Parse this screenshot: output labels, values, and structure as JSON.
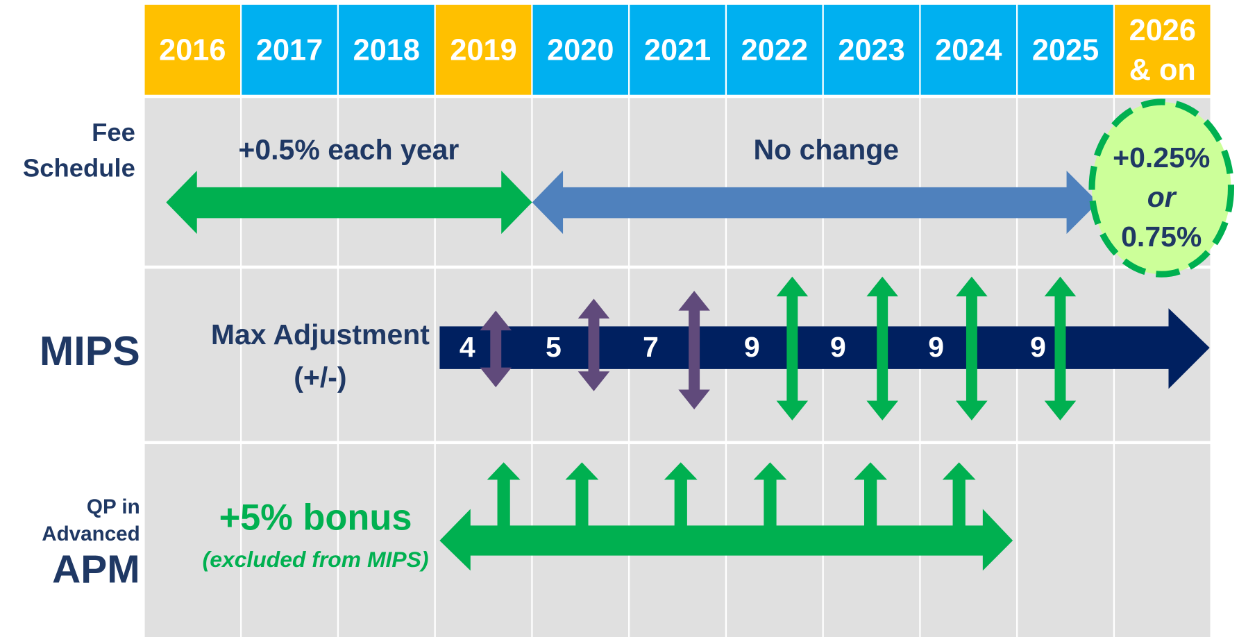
{
  "years": [
    [
      "2016"
    ],
    [
      "2017"
    ],
    [
      "2018"
    ],
    [
      "2019"
    ],
    [
      "2020"
    ],
    [
      "2021"
    ],
    [
      "2022"
    ],
    [
      "2023"
    ],
    [
      "2024"
    ],
    [
      "2025"
    ],
    [
      "2026",
      "& on"
    ]
  ],
  "fee_schedule": {
    "label": [
      "Fee",
      "Schedule"
    ],
    "left_text": "+0.5% each year",
    "mid_text": "No change",
    "circle": [
      "+0.25%",
      "or",
      "0.75%"
    ]
  },
  "mips": {
    "label": "MIPS",
    "heading": [
      "Max Adjustment",
      "(+/-)"
    ],
    "values": [
      4,
      5,
      7,
      9,
      9,
      9,
      9
    ]
  },
  "apm": {
    "label": [
      "QP in",
      "Advanced",
      "APM"
    ],
    "bonus": "+5% bonus",
    "note": "(excluded from MIPS)"
  }
}
